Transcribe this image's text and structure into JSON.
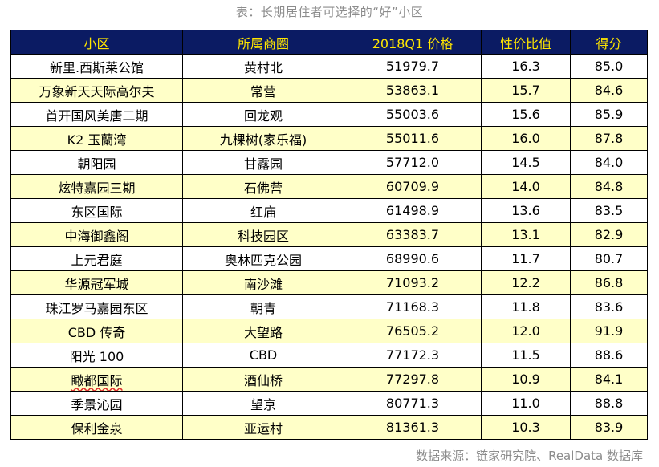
{
  "title": "表：长期居住者可选择的“好”小区",
  "source": "数据来源：链家研究院、RealData 数据库",
  "columns": [
    "小区",
    "所属商圈",
    "2018Q1 价格",
    "性价比值",
    "得分"
  ],
  "rows": [
    [
      "新里.西斯莱公馆",
      "黄村北",
      "51979.7",
      "16.3",
      "85.0"
    ],
    [
      "万象新天天际高尔夫",
      "常营",
      "53863.1",
      "15.7",
      "84.6"
    ],
    [
      "首开国风美唐二期",
      "回龙观",
      "55003.6",
      "15.6",
      "85.9"
    ],
    [
      "K2 玉蘭湾",
      "九棵树(家乐福)",
      "55011.6",
      "16.0",
      "87.8"
    ],
    [
      "朝阳园",
      "甘露园",
      "57712.0",
      "14.5",
      "84.0"
    ],
    [
      "炫特嘉园三期",
      "石佛营",
      "60709.9",
      "14.0",
      "84.8"
    ],
    [
      "东区国际",
      "红庙",
      "61498.9",
      "13.6",
      "83.5"
    ],
    [
      "中海御鑫阁",
      "科技园区",
      "63383.7",
      "13.1",
      "82.9"
    ],
    [
      "上元君庭",
      "奥林匹克公园",
      "68990.6",
      "11.7",
      "80.7"
    ],
    [
      "华源冠军城",
      "南沙滩",
      "71093.2",
      "12.2",
      "86.8"
    ],
    [
      "珠江罗马嘉园东区",
      "朝青",
      "71168.3",
      "11.8",
      "83.6"
    ],
    [
      "CBD 传奇",
      "大望路",
      "76505.2",
      "12.0",
      "91.9"
    ],
    [
      "阳光 100",
      "CBD",
      "77172.3",
      "11.5",
      "88.6"
    ],
    [
      "瞰都国际",
      "酒仙桥",
      "77297.8",
      "10.9",
      "84.1"
    ],
    [
      "季景沁园",
      "望京",
      "80771.3",
      "11.0",
      "88.8"
    ],
    [
      "保利金泉",
      "亚运村",
      "81361.3",
      "10.3",
      "83.9"
    ]
  ],
  "colors": {
    "header_bg": "#0b1b63",
    "header_text": "#ffe600",
    "stripe": "#ffffc8",
    "muted_text": "#8c8c8c"
  }
}
